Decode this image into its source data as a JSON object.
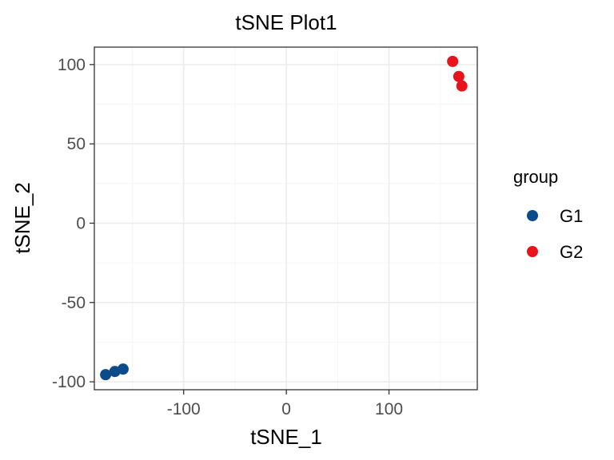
{
  "chart_data": {
    "type": "scatter",
    "title": "tSNE Plot1",
    "xlabel": "tSNE_1",
    "ylabel": "tSNE_2",
    "xlim": [
      -187,
      186
    ],
    "ylim": [
      -105,
      111
    ],
    "x_ticks": [
      -100,
      0,
      100
    ],
    "x_tick_labels": [
      "-100",
      "0",
      "100"
    ],
    "y_ticks": [
      -100,
      -50,
      0,
      50,
      100
    ],
    "y_tick_labels": [
      "-100",
      "-50",
      "0",
      "50",
      "100"
    ],
    "grid": true,
    "legend": {
      "title": "group",
      "placement": "right"
    },
    "series": [
      {
        "name": "G1",
        "color": "#0b4a8b",
        "points": [
          [
            -176,
            -95.5
          ],
          [
            -167,
            -93.5
          ],
          [
            -159,
            -92
          ]
        ]
      },
      {
        "name": "G2",
        "color": "#e8141b",
        "points": [
          [
            162,
            102
          ],
          [
            168,
            92.5
          ],
          [
            171,
            86.5
          ]
        ]
      }
    ]
  }
}
